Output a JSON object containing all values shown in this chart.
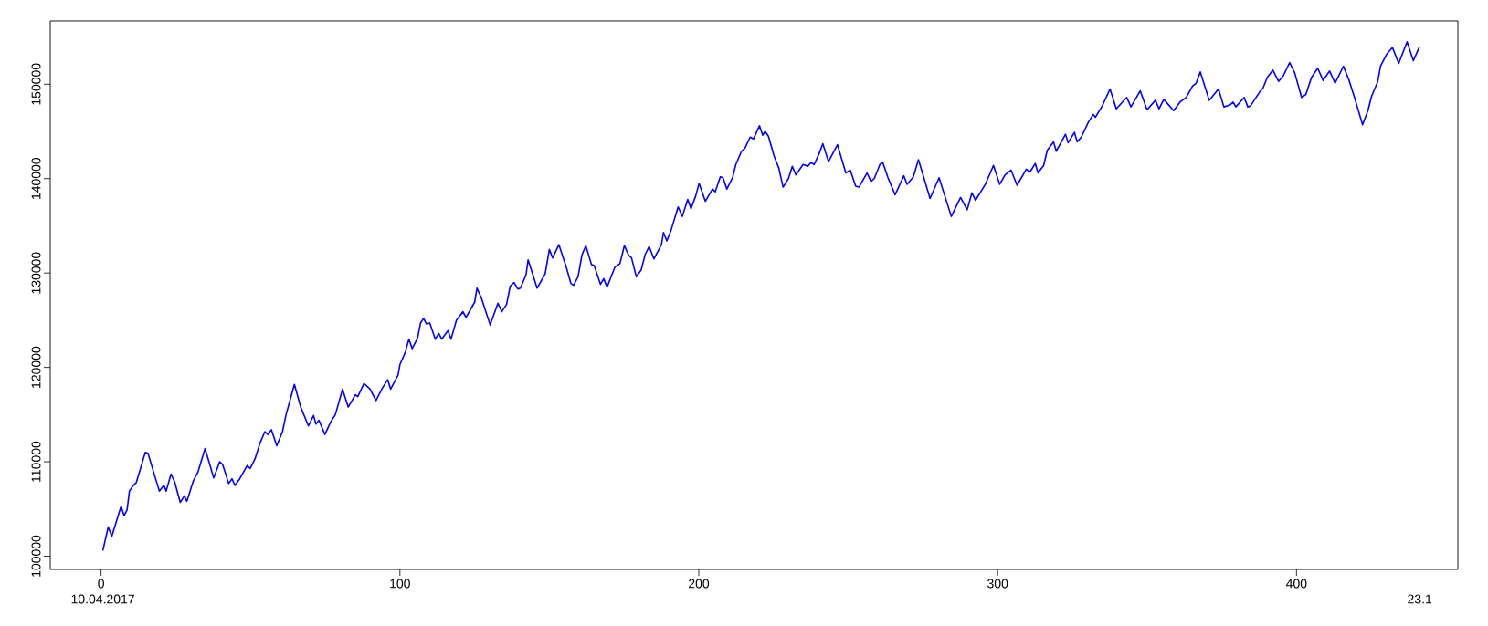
{
  "chart_data": {
    "type": "line",
    "color": "#0000ff",
    "marker": "none",
    "line_style": "solid",
    "xlim": [
      -17,
      454
    ],
    "ylim": [
      98600,
      156700
    ],
    "xticks": [
      0,
      100,
      200,
      300,
      400
    ],
    "yticks": [
      100000,
      110000,
      120000,
      130000,
      140000,
      150000
    ],
    "annotations": [
      "10.04.2017",
      "23.1"
    ],
    "x": [
      0.6,
      2.4,
      3.6,
      6.7,
      7.7,
      8.7,
      9.5,
      10.8,
      11.8,
      14.8,
      15.7,
      19.5,
      21.0,
      21.8,
      23.4,
      24.6,
      26.5,
      27.9,
      28.7,
      30.9,
      32.4,
      34.8,
      37.7,
      39.7,
      40.7,
      42.7,
      43.8,
      44.8,
      46.4,
      48.9,
      49.9,
      51.5,
      53.1,
      54.8,
      55.8,
      57.0,
      58.8,
      60.7,
      61.9,
      64.7,
      66.8,
      69.4,
      71.1,
      71.9,
      72.9,
      74.9,
      76.8,
      78.4,
      80.8,
      82.7,
      85.1,
      85.9,
      88.0,
      90.0,
      92.0,
      94.1,
      95.9,
      96.9,
      99.4,
      100.0,
      101.8,
      103.0,
      104.1,
      105.9,
      106.9,
      107.9,
      108.9,
      110.0,
      111.8,
      113.0,
      114.0,
      116.1,
      117.1,
      118.9,
      121.1,
      122.1,
      125.0,
      125.8,
      127.2,
      130.2,
      132.8,
      134.1,
      135.7,
      136.9,
      138.2,
      139.5,
      140.3,
      142.2,
      142.9,
      145.9,
      148.6,
      150.0,
      151.1,
      153.2,
      155.6,
      157.2,
      158.1,
      159.6,
      160.9,
      162.2,
      164.1,
      165.0,
      167.1,
      168.2,
      169.3,
      171.9,
      173.6,
      175.1,
      176.5,
      177.5,
      179.1,
      180.7,
      182.1,
      183.4,
      185.0,
      187.5,
      188.2,
      189.3,
      190.7,
      193.1,
      194.5,
      196.3,
      197.4,
      199.0,
      200.1,
      202.2,
      204.6,
      205.5,
      207.2,
      208.1,
      209.4,
      211.3,
      212.4,
      214.3,
      215.4,
      217.2,
      218.3,
      220.3,
      221.4,
      222.2,
      223.3,
      225.2,
      226.8,
      228.2,
      230.0,
      231.3,
      232.5,
      234.9,
      236.5,
      237.5,
      238.6,
      240.2,
      241.5,
      243.4,
      246.4,
      249.2,
      250.7,
      252.5,
      253.6,
      256.3,
      257.6,
      258.7,
      260.6,
      261.6,
      263.3,
      265.7,
      268.6,
      269.7,
      271.8,
      273.5,
      277.4,
      280.4,
      284.5,
      287.6,
      289.8,
      291.4,
      292.6,
      295.9,
      298.6,
      300.7,
      302.5,
      304.5,
      306.5,
      309.6,
      310.8,
      312.6,
      313.5,
      315.4,
      316.6,
      318.7,
      319.6,
      322.7,
      323.6,
      325.7,
      326.6,
      328.0,
      330.4,
      332.0,
      332.7,
      335.0,
      337.6,
      339.7,
      343.2,
      344.6,
      347.7,
      350.0,
      352.8,
      354.0,
      355.6,
      358.9,
      361.0,
      363.1,
      365.2,
      366.4,
      367.8,
      370.8,
      373.9,
      375.7,
      377.7,
      378.8,
      379.7,
      382.5,
      383.7,
      384.6,
      387.7,
      388.8,
      390.2,
      392.1,
      394.0,
      395.6,
      397.7,
      399.4,
      401.7,
      403.1,
      405.0,
      407.1,
      408.9,
      411.1,
      412.9,
      415.7,
      417.6,
      419.5,
      422.1,
      423.9,
      425.1,
      427.2,
      428.1,
      430.2,
      432.1,
      434.2,
      437.0,
      439.1,
      441.2
    ],
    "values": [
      100600,
      103100,
      102100,
      105300,
      104300,
      104900,
      106900,
      107500,
      107800,
      111000,
      110900,
      106900,
      107500,
      106900,
      108700,
      107900,
      105700,
      106400,
      105800,
      108000,
      108900,
      111400,
      108300,
      110000,
      109700,
      107700,
      108200,
      107500,
      108200,
      109600,
      109300,
      110300,
      111900,
      113200,
      112900,
      113400,
      111700,
      113200,
      115000,
      118200,
      115800,
      113800,
      114900,
      114000,
      114400,
      112900,
      114200,
      115000,
      117700,
      115800,
      117100,
      116900,
      118300,
      117700,
      116500,
      117800,
      118700,
      117700,
      119200,
      120300,
      121600,
      123000,
      122000,
      123100,
      124700,
      125200,
      124600,
      124700,
      123000,
      123600,
      123000,
      123900,
      123000,
      125000,
      125900,
      125300,
      126900,
      128400,
      127400,
      124500,
      126800,
      125900,
      126700,
      128600,
      129000,
      128300,
      128400,
      129800,
      131400,
      128400,
      129900,
      132500,
      131600,
      133000,
      130700,
      128900,
      128700,
      129600,
      131900,
      132900,
      130900,
      130800,
      128800,
      129400,
      128500,
      130600,
      131000,
      132900,
      131900,
      131600,
      129600,
      130300,
      132000,
      132800,
      131500,
      133000,
      134300,
      133400,
      134500,
      137000,
      136000,
      137800,
      136800,
      138200,
      139500,
      137600,
      138900,
      138600,
      140200,
      140100,
      138900,
      140100,
      141500,
      142900,
      143200,
      144400,
      144200,
      145600,
      144600,
      145000,
      144500,
      142400,
      141100,
      139100,
      140000,
      141300,
      140400,
      141500,
      141300,
      141700,
      141500,
      142600,
      143700,
      141800,
      143600,
      140600,
      140900,
      139200,
      139100,
      140600,
      139700,
      140000,
      141500,
      141700,
      140100,
      138300,
      140300,
      139400,
      140200,
      142000,
      137900,
      140100,
      136000,
      138000,
      136700,
      138500,
      137700,
      139400,
      141400,
      139400,
      140400,
      140900,
      139300,
      141000,
      140700,
      141600,
      140600,
      141400,
      143000,
      143900,
      142900,
      144700,
      143800,
      144900,
      143900,
      144400,
      146000,
      146800,
      146500,
      147700,
      149500,
      147400,
      148600,
      147600,
      149300,
      147300,
      148300,
      147400,
      148400,
      147200,
      148100,
      148600,
      149800,
      150100,
      151300,
      148300,
      149500,
      147600,
      147800,
      148100,
      147600,
      148600,
      147600,
      147700,
      149200,
      149600,
      150700,
      151500,
      150300,
      150900,
      152300,
      151200,
      148600,
      148900,
      150700,
      151700,
      150400,
      151400,
      150100,
      151900,
      150400,
      148500,
      145700,
      147200,
      148700,
      150300,
      151900,
      153200,
      153900,
      152200,
      154500,
      152500,
      154000
    ]
  }
}
